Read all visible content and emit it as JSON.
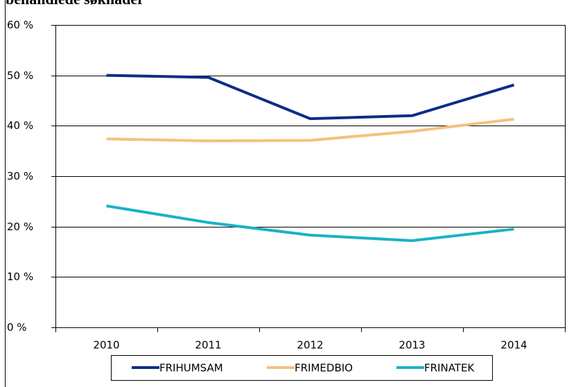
{
  "chart_data": {
    "type": "line",
    "title": "behandlede søknader",
    "categories": [
      "2010",
      "2011",
      "2012",
      "2013",
      "2014"
    ],
    "series": [
      {
        "name": "FRIHUMSAM",
        "color": "#0b2d86",
        "values": [
          50.0,
          49.6,
          41.4,
          42.0,
          48.1
        ]
      },
      {
        "name": "FRIMEDBIO",
        "color": "#f5c17e",
        "values": [
          37.4,
          37.0,
          37.1,
          38.9,
          41.3
        ]
      },
      {
        "name": "FRINATEK",
        "color": "#1ab2c7",
        "values": [
          24.1,
          20.8,
          18.3,
          17.2,
          19.5
        ]
      }
    ],
    "ylim": [
      0,
      60
    ],
    "yticks": [
      {
        "value": 0,
        "label": "0 %"
      },
      {
        "value": 10,
        "label": "10 %"
      },
      {
        "value": 20,
        "label": "20 %"
      },
      {
        "value": 30,
        "label": "30 %"
      },
      {
        "value": 40,
        "label": "40 %"
      },
      {
        "value": 50,
        "label": "50 %"
      },
      {
        "value": 60,
        "label": "60 %"
      }
    ],
    "grid": true,
    "legend": "bottom"
  }
}
